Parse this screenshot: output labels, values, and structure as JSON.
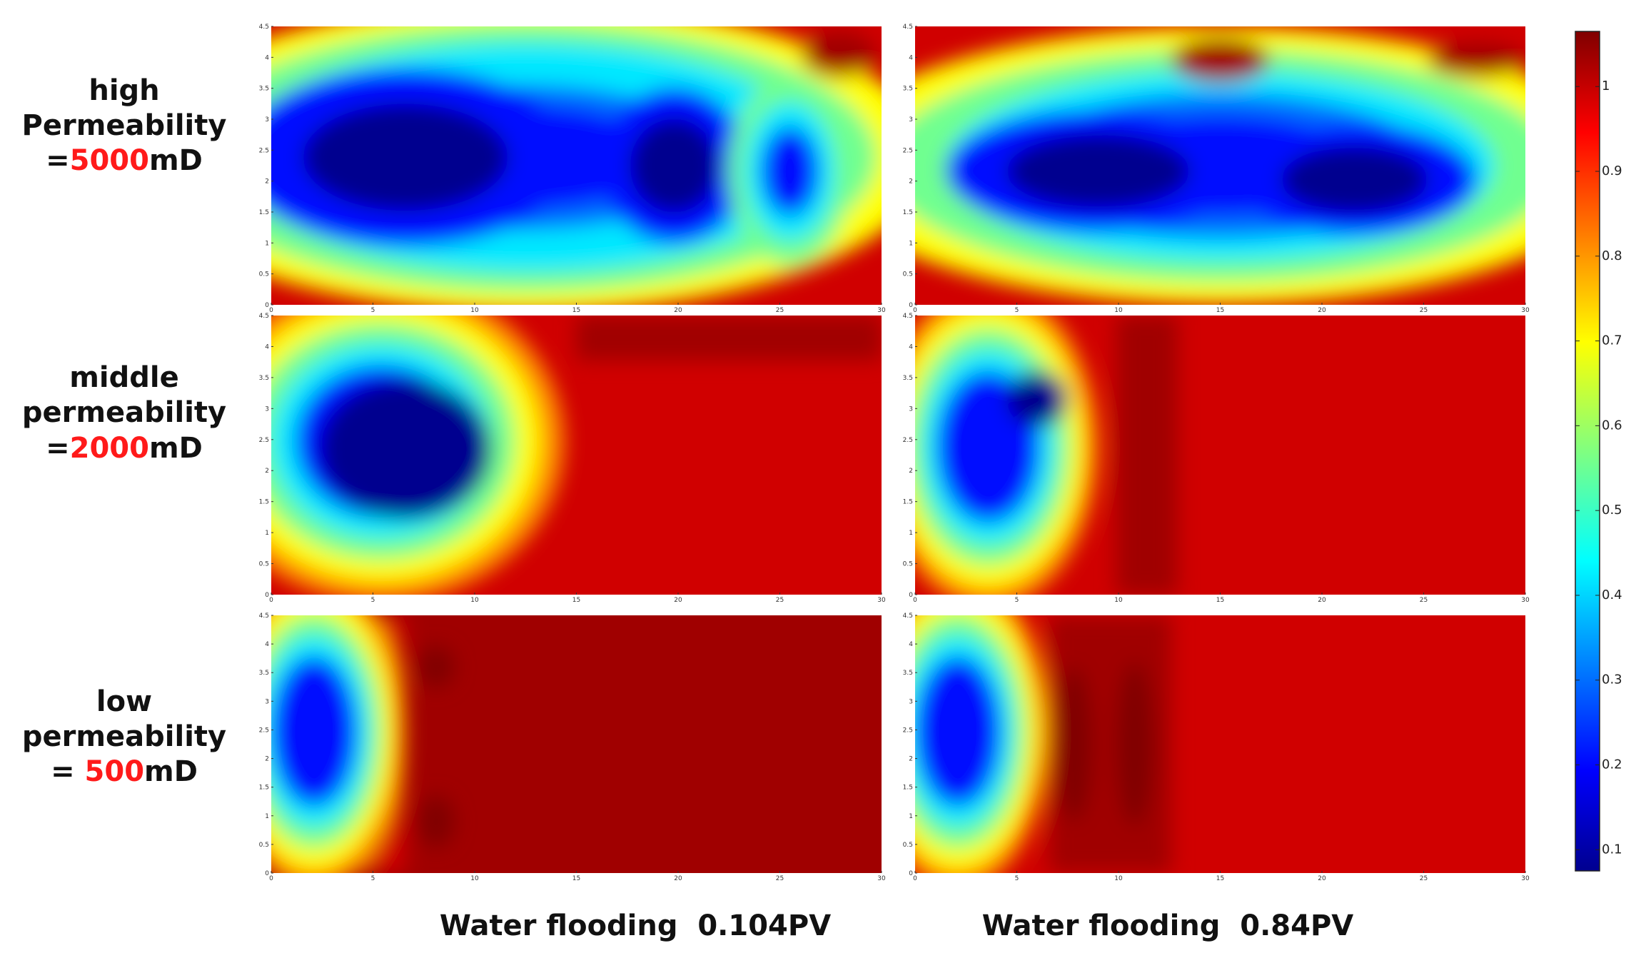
{
  "rows": [
    {
      "label_lines": [
        "high",
        "Permeability"
      ],
      "prefix": "=",
      "value": "5000",
      "unit": "mD"
    },
    {
      "label_lines": [
        "middle",
        "permeability"
      ],
      "prefix": "=",
      "value": "2000",
      "unit": "mD"
    },
    {
      "label_lines": [
        "low",
        "permeability"
      ],
      "prefix": "= ",
      "value": "500",
      "unit": "mD"
    }
  ],
  "columns": [
    "Water flooding  0.104PV",
    "Water flooding  0.84PV"
  ],
  "axes": {
    "xlim": [
      0,
      30
    ],
    "xticks": [
      0,
      5,
      10,
      15,
      20,
      25,
      30
    ],
    "ylim": [
      0,
      4.5
    ],
    "yticks": [
      0,
      0.5,
      1,
      1.5,
      2,
      2.5,
      3,
      3.5,
      4,
      4.5
    ]
  },
  "colorbar": {
    "lim": [
      0.075,
      1.065
    ],
    "ticks": [
      0.1,
      0.2,
      0.3,
      0.4,
      0.5,
      0.6,
      0.7,
      0.8,
      0.9,
      1
    ]
  }
}
